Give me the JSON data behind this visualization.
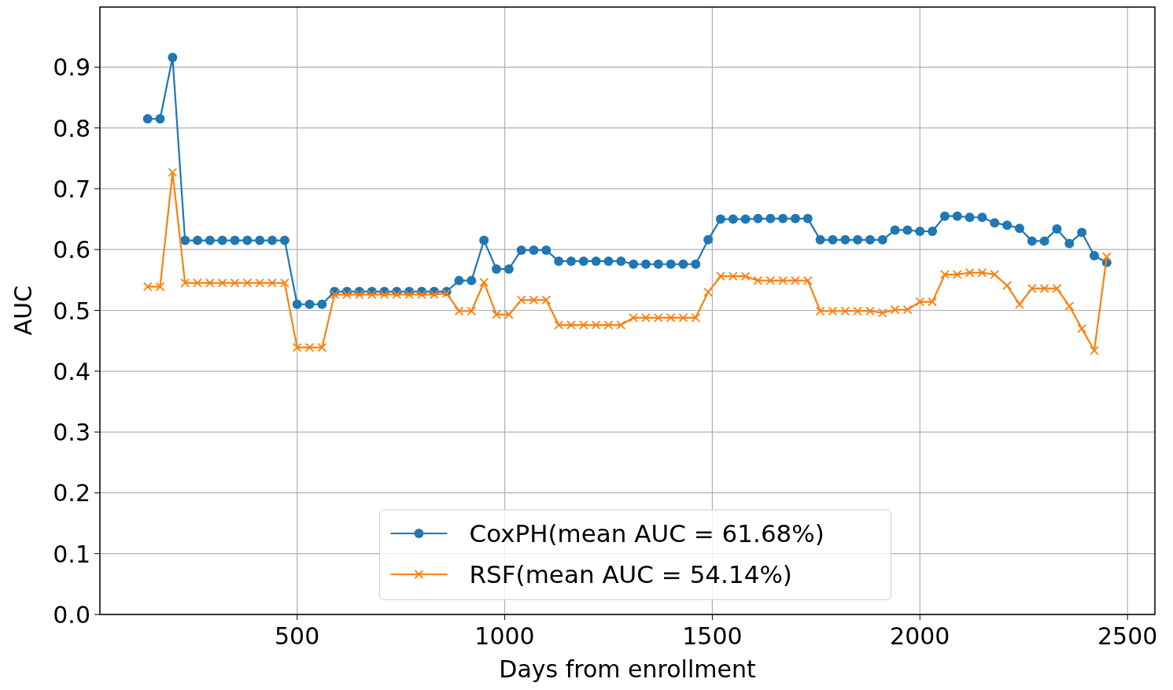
{
  "chart_data": {
    "type": "line",
    "xlabel": "Days from enrollment",
    "ylabel": "AUC",
    "x": [
      140,
      170,
      200,
      230,
      260,
      290,
      320,
      350,
      380,
      410,
      440,
      470,
      500,
      530,
      560,
      590,
      620,
      650,
      680,
      710,
      740,
      770,
      800,
      830,
      860,
      890,
      920,
      950,
      980,
      1010,
      1040,
      1070,
      1100,
      1130,
      1160,
      1190,
      1220,
      1250,
      1280,
      1310,
      1340,
      1370,
      1400,
      1430,
      1460,
      1490,
      1520,
      1550,
      1580,
      1610,
      1640,
      1670,
      1700,
      1730,
      1760,
      1790,
      1820,
      1850,
      1880,
      1910,
      1940,
      1970,
      2000,
      2030,
      2060,
      2090,
      2120,
      2150,
      2180,
      2210,
      2240,
      2270,
      2300,
      2330,
      2360,
      2390,
      2420,
      2450
    ],
    "series": [
      {
        "name": "CoxPH(mean AUC = 61.68%)",
        "color": "#1f77b4",
        "marker": "circle",
        "values": [
          0.815,
          0.815,
          0.916,
          0.615,
          0.615,
          0.615,
          0.615,
          0.615,
          0.615,
          0.615,
          0.615,
          0.615,
          0.51,
          0.51,
          0.51,
          0.531,
          0.531,
          0.531,
          0.531,
          0.531,
          0.531,
          0.531,
          0.531,
          0.531,
          0.531,
          0.549,
          0.549,
          0.615,
          0.568,
          0.568,
          0.599,
          0.599,
          0.599,
          0.581,
          0.581,
          0.581,
          0.581,
          0.581,
          0.581,
          0.576,
          0.576,
          0.576,
          0.576,
          0.576,
          0.576,
          0.616,
          0.65,
          0.65,
          0.65,
          0.651,
          0.651,
          0.651,
          0.651,
          0.651,
          0.616,
          0.616,
          0.616,
          0.616,
          0.616,
          0.616,
          0.632,
          0.632,
          0.63,
          0.63,
          0.655,
          0.655,
          0.653,
          0.653,
          0.644,
          0.64,
          0.635,
          0.614,
          0.614,
          0.634,
          0.61,
          0.628,
          0.59,
          0.579
        ]
      },
      {
        "name": "RSF(mean AUC = 54.14%)",
        "color": "#ff7f0e",
        "marker": "cross",
        "values": [
          0.539,
          0.539,
          0.727,
          0.545,
          0.545,
          0.545,
          0.545,
          0.545,
          0.545,
          0.545,
          0.545,
          0.545,
          0.439,
          0.439,
          0.439,
          0.526,
          0.526,
          0.526,
          0.526,
          0.526,
          0.526,
          0.526,
          0.526,
          0.526,
          0.528,
          0.499,
          0.499,
          0.546,
          0.493,
          0.493,
          0.517,
          0.517,
          0.517,
          0.476,
          0.476,
          0.476,
          0.476,
          0.476,
          0.476,
          0.488,
          0.488,
          0.488,
          0.488,
          0.488,
          0.488,
          0.53,
          0.556,
          0.556,
          0.556,
          0.549,
          0.549,
          0.549,
          0.549,
          0.549,
          0.499,
          0.499,
          0.499,
          0.499,
          0.499,
          0.496,
          0.501,
          0.501,
          0.514,
          0.514,
          0.559,
          0.559,
          0.562,
          0.562,
          0.559,
          0.541,
          0.51,
          0.536,
          0.536,
          0.536,
          0.507,
          0.47,
          0.434,
          0.588
        ]
      }
    ],
    "xlim": [
      25,
      2566
    ],
    "ylim": [
      0,
      1.0
    ],
    "xticks": [
      500,
      1000,
      1500,
      2000,
      2500
    ],
    "yticks": [
      {
        "value": 0,
        "label": "0.0"
      },
      0.1,
      0.2,
      0.3,
      0.4,
      0.5,
      0.6,
      0.7,
      0.8,
      0.9
    ],
    "grid": true,
    "legend": "bottom",
    "line_style": "solid"
  }
}
